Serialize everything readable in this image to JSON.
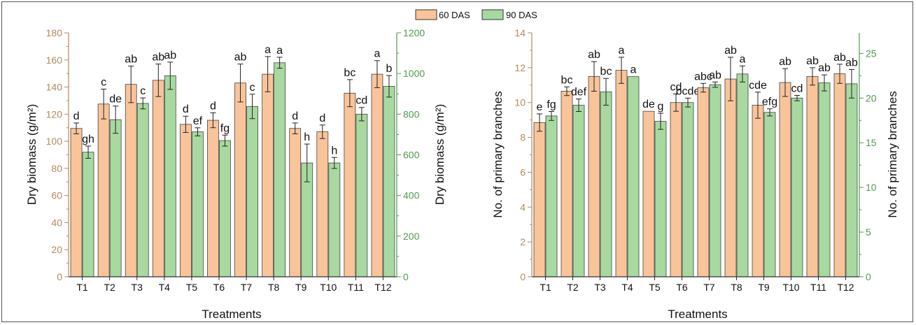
{
  "colors": {
    "s60": "#f9c49a",
    "s90": "#a7d9a0",
    "left_axis": "#b48a5a",
    "right_axis": "#4f9a4f",
    "axis_dark": "#333333"
  },
  "legend": {
    "s60": "60 DAS",
    "s90": "90 DAS"
  },
  "chart_data": [
    {
      "type": "bar",
      "categories": [
        "T1",
        "T2",
        "T3",
        "T4",
        "T5",
        "T6",
        "T7",
        "T8",
        "T9",
        "T10",
        "T11",
        "T12"
      ],
      "xlabel": "Treatments",
      "ylabel": "Dry biomass (g/m²)",
      "ylim": [
        0,
        180
      ],
      "yticks": [
        0,
        20,
        40,
        60,
        80,
        100,
        120,
        140,
        160,
        180
      ],
      "ylabel_right": "Dry biomass (g/m²)",
      "ylim_right": [
        0,
        1200
      ],
      "yticks_right": [
        0,
        200,
        400,
        600,
        800,
        1000,
        1200
      ],
      "series": [
        {
          "name": "60 DAS",
          "axis": "left",
          "values": [
            109.5,
            127.5,
            142,
            145,
            112.5,
            115.5,
            143,
            149.5,
            109.5,
            107,
            135.5,
            149.5
          ],
          "errors": [
            4,
            11,
            13.5,
            12,
            6,
            5.5,
            14,
            13,
            4,
            5,
            10,
            10
          ],
          "letters": [
            "d",
            "c",
            "ab",
            "ab",
            "d",
            "d",
            "ab",
            "a",
            "d",
            "d",
            "bc",
            "a"
          ]
        },
        {
          "name": "90 DAS",
          "axis": "right",
          "values": [
            613,
            773,
            853,
            989,
            713,
            670,
            838,
            1053,
            560,
            560,
            800,
            937
          ],
          "errors": [
            30,
            67,
            27,
            67,
            20,
            27,
            60,
            27,
            93,
            27,
            33,
            53
          ],
          "letters": [
            "gh",
            "de",
            "c",
            "ab",
            "ef",
            "fg",
            "c",
            "a",
            "h",
            "h",
            "cd",
            "b"
          ]
        }
      ]
    },
    {
      "type": "bar",
      "categories": [
        "T1",
        "T2",
        "T3",
        "T4",
        "T5",
        "T6",
        "T7",
        "T8",
        "T9",
        "T10",
        "T11",
        "T12"
      ],
      "xlabel": "Treatments",
      "ylabel": "No. of primary branches",
      "ylim": [
        0,
        14
      ],
      "yticks": [
        0,
        2,
        4,
        6,
        8,
        10,
        12,
        14
      ],
      "ylabel_right": "No. of primary branches",
      "ylim_right": [
        0,
        27.3
      ],
      "yticks_right": [
        0,
        5,
        10,
        15,
        20,
        25
      ],
      "series": [
        {
          "name": "60 DAS",
          "axis": "left",
          "values": [
            8.85,
            10.65,
            11.5,
            11.85,
            9.5,
            10.0,
            10.85,
            11.35,
            9.85,
            11.15,
            11.5,
            11.65
          ],
          "errors": [
            0.5,
            0.25,
            0.85,
            0.75,
            0.0,
            0.5,
            0.25,
            1.25,
            0.75,
            0.8,
            0.5,
            0.55
          ],
          "letters": [
            "e",
            "bc",
            "ab",
            "a",
            "de",
            "cd",
            "abc",
            "ab",
            "cde",
            "ab",
            "ab",
            "ab"
          ]
        },
        {
          "name": "90 DAS",
          "axis": "right",
          "values": [
            18.0,
            19.2,
            20.7,
            22.4,
            17.4,
            19.5,
            21.5,
            22.7,
            18.4,
            20.0,
            21.7,
            21.6
          ],
          "errors": [
            0.5,
            0.7,
            1.5,
            0.0,
            0.9,
            0.5,
            0.3,
            0.9,
            0.4,
            0.3,
            0.9,
            1.6
          ],
          "letters": [
            "fg",
            "def",
            "bc",
            "a",
            "g",
            "bcde",
            "ab",
            "a",
            "efg",
            "cd",
            "ab",
            "ab"
          ]
        }
      ]
    }
  ]
}
